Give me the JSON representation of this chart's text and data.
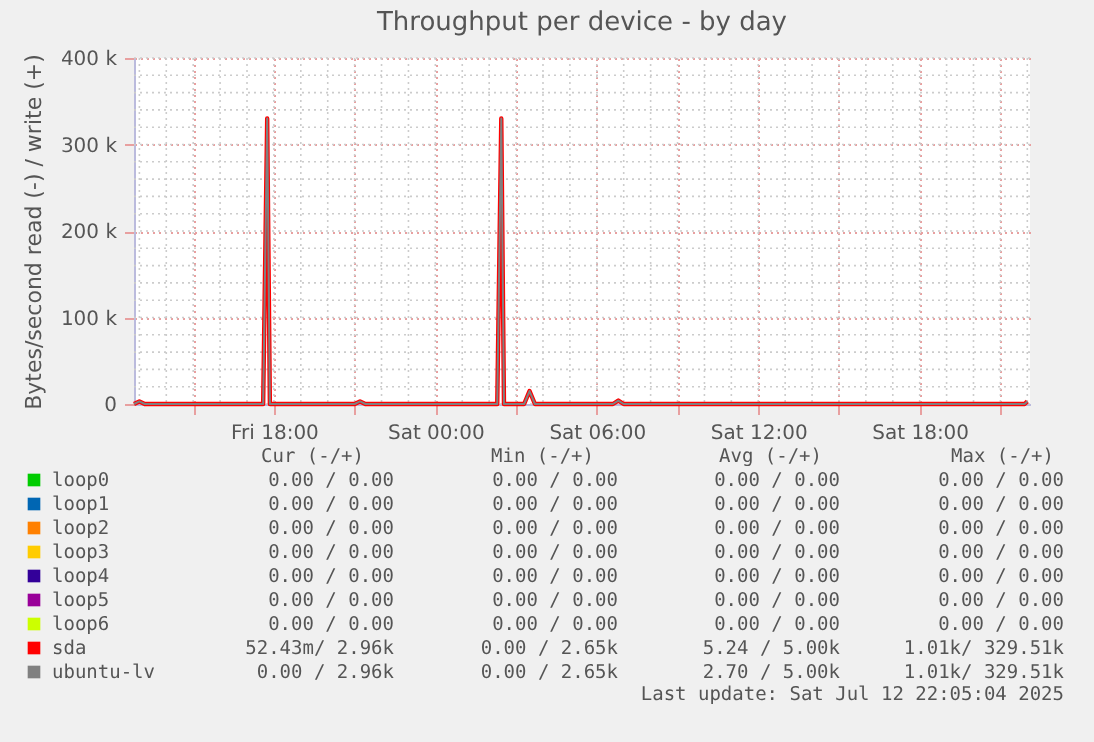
{
  "chart_data": {
    "type": "line",
    "title": "Throughput per device - by day",
    "ylabel": "Bytes/second read (-) / write (+)",
    "x": [
      "2025-07-11T12:48",
      "2025-07-11T13:00",
      "2025-07-11T13:12",
      "2025-07-11T17:36",
      "2025-07-11T17:45",
      "2025-07-11T17:51",
      "2025-07-11T18:00",
      "2025-07-11T21:00",
      "2025-07-11T21:12",
      "2025-07-11T21:24",
      "2025-07-12T01:48",
      "2025-07-12T02:18",
      "2025-07-12T02:27",
      "2025-07-12T02:33",
      "2025-07-12T02:42",
      "2025-07-12T03:18",
      "2025-07-12T03:30",
      "2025-07-12T03:42",
      "2025-07-12T06:36",
      "2025-07-12T06:48",
      "2025-07-12T07:00",
      "2025-07-12T16:00",
      "2025-07-12T21:54",
      "2025-07-12T22:00"
    ],
    "series": [
      {
        "name": "loop0",
        "color": "#00cc00",
        "values": [
          null,
          null,
          null,
          null,
          null,
          null,
          null,
          null,
          null,
          null,
          null,
          null,
          null,
          null,
          null,
          null,
          null,
          null,
          null,
          null,
          null,
          null,
          null,
          null
        ]
      },
      {
        "name": "loop1",
        "color": "#0066b3",
        "values": [
          null,
          null,
          null,
          null,
          null,
          null,
          null,
          null,
          null,
          null,
          null,
          null,
          null,
          null,
          null,
          null,
          null,
          null,
          null,
          null,
          null,
          null,
          null,
          null
        ]
      },
      {
        "name": "loop2",
        "color": "#ff8000",
        "values": [
          null,
          null,
          null,
          null,
          null,
          null,
          null,
          null,
          null,
          null,
          null,
          null,
          null,
          null,
          null,
          null,
          null,
          null,
          null,
          null,
          null,
          null,
          null,
          null
        ]
      },
      {
        "name": "loop3",
        "color": "#ffcc00",
        "values": [
          null,
          null,
          null,
          null,
          null,
          null,
          null,
          null,
          null,
          null,
          null,
          null,
          null,
          null,
          null,
          null,
          null,
          null,
          null,
          null,
          null,
          null,
          null,
          null
        ]
      },
      {
        "name": "loop4",
        "color": "#330099",
        "values": [
          null,
          null,
          null,
          null,
          null,
          null,
          null,
          null,
          null,
          null,
          null,
          null,
          null,
          null,
          null,
          null,
          null,
          null,
          null,
          null,
          null,
          null,
          null,
          null
        ]
      },
      {
        "name": "loop5",
        "color": "#990099",
        "values": [
          null,
          null,
          null,
          null,
          null,
          null,
          null,
          null,
          null,
          null,
          null,
          null,
          null,
          null,
          null,
          null,
          null,
          null,
          null,
          null,
          null,
          null,
          null,
          null
        ]
      },
      {
        "name": "loop6",
        "color": "#ccff00",
        "values": [
          null,
          null,
          null,
          null,
          null,
          null,
          null,
          null,
          null,
          null,
          null,
          null,
          null,
          null,
          null,
          null,
          null,
          null,
          null,
          null,
          null,
          null,
          null,
          null
        ]
      },
      {
        "name": "sda",
        "color": "#ff0000",
        "values": [
          0,
          3000,
          0,
          0,
          330000,
          0,
          0,
          0,
          3000,
          0,
          0,
          0,
          330000,
          0,
          0,
          0,
          15000,
          0,
          0,
          4000,
          0,
          0,
          0,
          3000
        ]
      },
      {
        "name": "ubuntu-lv",
        "color": "#808080",
        "values": [
          0,
          3000,
          0,
          0,
          330000,
          0,
          0,
          0,
          3000,
          0,
          0,
          0,
          330000,
          0,
          0,
          0,
          15000,
          0,
          0,
          4000,
          0,
          0,
          0,
          3000
        ]
      }
    ],
    "xlim": [
      "2025-07-11T12:48",
      "2025-07-12T22:06"
    ],
    "xticks": [
      {
        "value": "2025-07-11T15:00",
        "label": null
      },
      {
        "value": "2025-07-11T18:00",
        "label": "Fri 18:00"
      },
      {
        "value": "2025-07-11T21:00",
        "label": null
      },
      {
        "value": "2025-07-12T00:00",
        "label": "Sat 00:00"
      },
      {
        "value": "2025-07-12T03:00",
        "label": null
      },
      {
        "value": "2025-07-12T06:00",
        "label": "Sat 06:00"
      },
      {
        "value": "2025-07-12T09:00",
        "label": null
      },
      {
        "value": "2025-07-12T12:00",
        "label": "Sat 12:00"
      },
      {
        "value": "2025-07-12T15:00",
        "label": null
      },
      {
        "value": "2025-07-12T18:00",
        "label": "Sat 18:00"
      },
      {
        "value": "2025-07-12T21:00",
        "label": null
      }
    ],
    "ylim": [
      0,
      400000
    ],
    "yticks": [
      {
        "value": 0,
        "label": "0"
      },
      {
        "value": 100000,
        "label": "100 k"
      },
      {
        "value": 200000,
        "label": "200 k"
      },
      {
        "value": 300000,
        "label": "300 k"
      },
      {
        "value": 400000,
        "label": "400 k"
      }
    ],
    "grid": true,
    "legend": "bottom",
    "marker": "none",
    "line_style": "solid",
    "annotations": [
      "Cur (-/+)",
      "Min (-/+)",
      "Avg (-/+)",
      "Max (-/+)",
      "0.00 /   0.00",
      "0.00 /   0.00",
      "0.00 /   0.00",
      "0.00 /   0.00",
      "0.00 /   0.00",
      "0.00 /   0.00",
      "0.00 /   0.00",
      "0.00 /   0.00",
      "0.00 /   0.00",
      "0.00 /   0.00",
      "0.00 /   0.00",
      "0.00 /   0.00",
      "0.00 /   0.00",
      "0.00 /   0.00",
      "0.00 /   0.00",
      "0.00 /   0.00",
      "0.00 /   0.00",
      "0.00 /   0.00",
      "0.00 /   0.00",
      "0.00 /   0.00",
      "0.00 /   0.00",
      "0.00 /   0.00",
      "0.00 /   0.00",
      "0.00 /   0.00",
      "0.00 /   0.00",
      "0.00 /   0.00",
      "0.00 /   0.00",
      "0.00 /   0.00",
      "52.43m/   2.96k",
      "0.00 /   2.65k",
      "5.24 /   5.00k",
      "1.01k/ 329.51k",
      "0.00 /   2.96k",
      "0.00 /   2.65k",
      "2.70 /   5.00k",
      "1.01k/ 329.51k",
      "Last update: Sat Jul 12 22:05:04 2025"
    ]
  }
}
